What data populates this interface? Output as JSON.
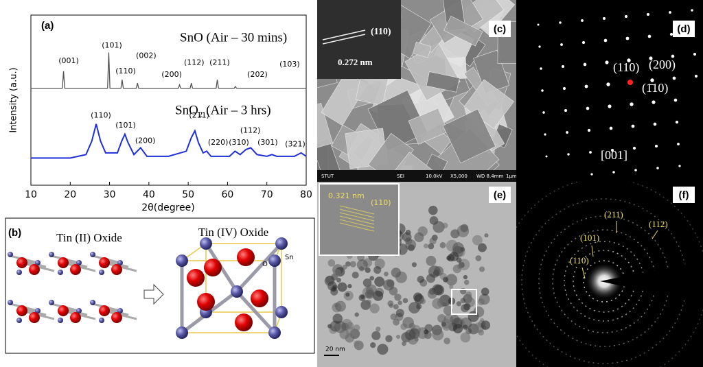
{
  "chart_data": {
    "type": "line",
    "xlabel": "2θ(degree)",
    "ylabel": "Intensity (a.u.)",
    "panel_label": "(a)",
    "xlim": [
      10,
      80
    ],
    "xticks": [
      10,
      20,
      30,
      40,
      50,
      60,
      70,
      80
    ],
    "ylim": [
      0,
      1
    ],
    "series": [
      {
        "name": "SnO (Air –  30 mins)",
        "color": "#555555",
        "x": [
          10,
          18.0,
          18.3,
          18.6,
          29.5,
          29.8,
          30.1,
          32.9,
          33.2,
          33.5,
          36.8,
          37.1,
          37.4,
          47.5,
          47.8,
          48.1,
          50.5,
          50.8,
          51.1,
          57.1,
          57.4,
          57.7,
          61.7,
          62.0,
          62.3,
          80
        ],
        "values": [
          0.57,
          0.57,
          0.67,
          0.57,
          0.57,
          0.78,
          0.57,
          0.57,
          0.62,
          0.57,
          0.57,
          0.6,
          0.57,
          0.57,
          0.59,
          0.57,
          0.57,
          0.6,
          0.57,
          0.57,
          0.62,
          0.57,
          0.57,
          0.58,
          0.57,
          0.57
        ]
      },
      {
        "name": "SnO₂ (Air –  3 hrs)",
        "color": "#1f2fd8",
        "x": [
          10,
          20,
          24,
          25.5,
          26.6,
          27.7,
          29,
          32,
          33.1,
          33.9,
          34.7,
          36.2,
          37.9,
          39.5,
          45,
          49.5,
          50.8,
          51.7,
          52.6,
          53.8,
          54.7,
          55.8,
          60.5,
          61.9,
          63.2,
          64.7,
          65.9,
          67.5,
          70,
          71.3,
          72.5,
          77,
          78.7,
          80
        ],
        "values": [
          0.16,
          0.16,
          0.18,
          0.26,
          0.36,
          0.26,
          0.19,
          0.19,
          0.26,
          0.3,
          0.25,
          0.18,
          0.22,
          0.17,
          0.17,
          0.2,
          0.28,
          0.32,
          0.25,
          0.19,
          0.2,
          0.17,
          0.17,
          0.2,
          0.18,
          0.21,
          0.22,
          0.18,
          0.17,
          0.18,
          0.17,
          0.17,
          0.19,
          0.17
        ]
      }
    ],
    "annotations": [
      {
        "text": "(001)",
        "x": 19.6,
        "y": 0.73
      },
      {
        "text": "(101)",
        "x": 30.6,
        "y": 0.82
      },
      {
        "text": "(110)",
        "x": 34.1,
        "y": 0.67
      },
      {
        "text": "(002)",
        "x": 39.3,
        "y": 0.76
      },
      {
        "text": "(200)",
        "x": 45.8,
        "y": 0.65
      },
      {
        "text": "(112)",
        "x": 51.5,
        "y": 0.72
      },
      {
        "text": "(211)",
        "x": 58.0,
        "y": 0.72
      },
      {
        "text": "(202)",
        "x": 67.6,
        "y": 0.65
      },
      {
        "text": "(103)",
        "x": 75.8,
        "y": 0.71
      },
      {
        "text": "(110)",
        "x": 27.8,
        "y": 0.41
      },
      {
        "text": "(101)",
        "x": 34.1,
        "y": 0.35
      },
      {
        "text": "(200)",
        "x": 39.1,
        "y": 0.26
      },
      {
        "text": "(211)",
        "x": 52.8,
        "y": 0.41
      },
      {
        "text": "(220)",
        "x": 57.6,
        "y": 0.25
      },
      {
        "text": "(310)",
        "x": 62.9,
        "y": 0.25
      },
      {
        "text": "(112)",
        "x": 65.8,
        "y": 0.32
      },
      {
        "text": "(301)",
        "x": 70.2,
        "y": 0.25
      },
      {
        "text": "(321)",
        "x": 77.2,
        "y": 0.24
      }
    ]
  },
  "panels": {
    "b": {
      "label": "(b)",
      "left_title": "Tin (II) Oxide",
      "right_title": "Tin (IV) Oxide",
      "atom_sn": "Sn",
      "atom_o": "O"
    },
    "c": {
      "label": "(c)",
      "plane": "(110)",
      "spacing": "0.272 nm",
      "bar": [
        "STUT",
        "SEI",
        "10.0kV",
        "X5,000",
        "WD 8.4mm",
        "1µm"
      ]
    },
    "d": {
      "label": "(d)",
      "spot_1": "(110)",
      "spot_2": "(200)",
      "spot_3": "(1̄10)",
      "zone": "[001]"
    },
    "e": {
      "label": "(e)",
      "spacing": "0.321 nm",
      "plane": "(110)",
      "scale": "20 nm"
    },
    "f": {
      "label": "(f)",
      "ring_1": "(211)",
      "ring_2": "(112)",
      "ring_3": "(101)",
      "ring_4": "(110)"
    }
  }
}
